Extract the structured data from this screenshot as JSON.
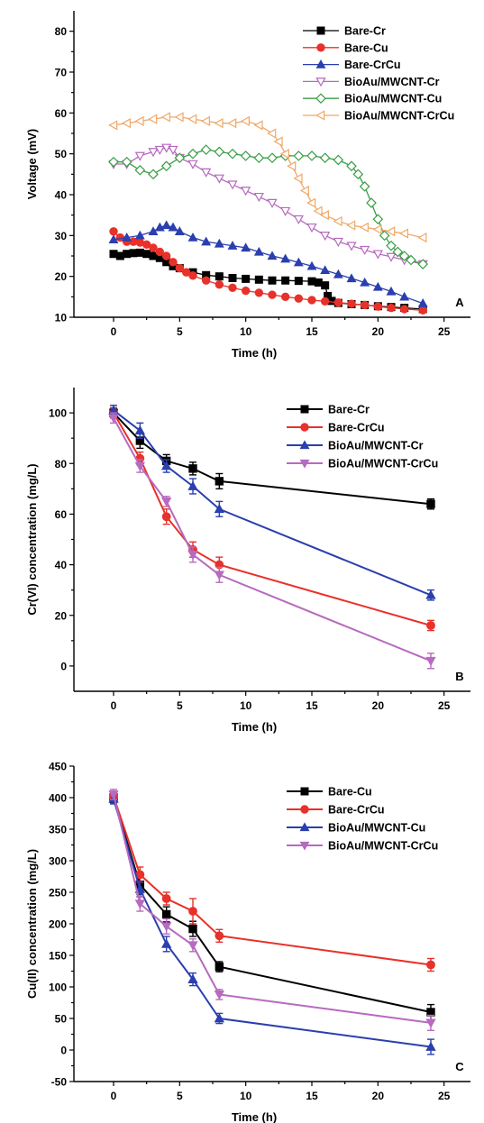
{
  "chart_data": [
    {
      "id": "A",
      "type": "line",
      "panel_label": "A",
      "xlabel": "Time (h)",
      "ylabel": "Voltage (mV)",
      "xlim": [
        -3,
        27
      ],
      "ylim": [
        10,
        85
      ],
      "xticks": [
        0,
        5,
        10,
        15,
        20,
        25
      ],
      "yticks": [
        10,
        20,
        30,
        40,
        50,
        60,
        70,
        80
      ],
      "grid": false,
      "legend_position": "top-right",
      "series": [
        {
          "name": "Bare-Cr",
          "color": "#000000",
          "marker": "square",
          "filled": true,
          "x": [
            0,
            0.5,
            1,
            1.5,
            2,
            2.5,
            3,
            3.5,
            4,
            4.5,
            5,
            6,
            7,
            8,
            9,
            10,
            11,
            12,
            13,
            14,
            15,
            15.5,
            16,
            16.2,
            16.5,
            17,
            18,
            19,
            20,
            21,
            22,
            23.4
          ],
          "y": [
            25.5,
            25,
            25.5,
            25.7,
            25.8,
            25.5,
            25,
            24.5,
            23.5,
            22.5,
            22,
            21,
            20.3,
            20,
            19.6,
            19.4,
            19.2,
            19,
            19,
            18.9,
            18.8,
            18.5,
            17.8,
            15.2,
            14,
            13.5,
            13.2,
            13,
            12.7,
            12.5,
            12.3,
            12
          ]
        },
        {
          "name": "Bare-Cu",
          "color": "#e8312a",
          "marker": "circle",
          "filled": true,
          "x": [
            0,
            0.5,
            1,
            1.5,
            2,
            2.5,
            3,
            3.5,
            4,
            4.5,
            5,
            5.5,
            6,
            7,
            8,
            9,
            10,
            11,
            12,
            13,
            14,
            15,
            16,
            17,
            18,
            19,
            20,
            21,
            22,
            23.4
          ],
          "y": [
            31,
            29.5,
            28.5,
            28.5,
            28.3,
            27.8,
            27,
            26,
            25,
            23.5,
            22,
            21,
            20.2,
            19,
            18,
            17.2,
            16.5,
            16,
            15.5,
            15,
            14.6,
            14.2,
            13.9,
            13.6,
            13.3,
            13,
            12.6,
            12.3,
            12,
            11.7
          ]
        },
        {
          "name": "Bare-CrCu",
          "color": "#2b3fae",
          "marker": "triangle-up",
          "filled": true,
          "x": [
            0,
            1,
            2,
            3,
            3.5,
            4,
            4.5,
            5,
            6,
            7,
            8,
            9,
            10,
            11,
            12,
            13,
            14,
            15,
            16,
            17,
            18,
            19,
            20,
            21,
            22,
            23.4
          ],
          "y": [
            29,
            29.5,
            30,
            31,
            32,
            32.5,
            32,
            31,
            29.5,
            28.5,
            28,
            27.5,
            27,
            26,
            25,
            24.3,
            23.4,
            22.5,
            21.5,
            20.5,
            19.5,
            18.5,
            17.4,
            16.3,
            15,
            13.4
          ]
        },
        {
          "name": "BioAu/MWCNT-Cr",
          "color": "#b76abf",
          "marker": "triangle-down",
          "filled": false,
          "x": [
            0,
            1,
            2,
            3,
            3.5,
            4,
            4.5,
            5,
            6,
            7,
            8,
            9,
            10,
            11,
            12,
            13,
            14,
            15,
            16,
            17,
            18,
            19,
            20,
            21,
            22,
            23.4
          ],
          "y": [
            47.5,
            47.5,
            49.5,
            50.5,
            51,
            51.5,
            51,
            49,
            47.5,
            45.5,
            44,
            42.5,
            41,
            39.5,
            38,
            36,
            34,
            32,
            30,
            28.5,
            27.5,
            26.5,
            25.5,
            24.8,
            24,
            23
          ]
        },
        {
          "name": "BioAu/MWCNT-Cu",
          "color": "#3a9e46",
          "marker": "diamond",
          "filled": false,
          "x": [
            0,
            1,
            2,
            3,
            4,
            5,
            6,
            7,
            8,
            9,
            10,
            11,
            12,
            13,
            14,
            15,
            16,
            17,
            18,
            18.5,
            19,
            19.5,
            20,
            20.5,
            21,
            21.5,
            22,
            22.5,
            23.4
          ],
          "y": [
            48,
            48,
            46,
            45,
            47,
            49,
            50,
            51,
            50.5,
            50,
            49.5,
            49,
            49,
            49.5,
            49.5,
            49.5,
            49,
            48.5,
            47,
            45,
            42,
            38,
            34,
            30,
            27.5,
            26,
            25,
            24,
            23
          ]
        },
        {
          "name": "BioAu/MWCNT-CrCu",
          "color": "#f0a868",
          "marker": "triangle-left",
          "filled": false,
          "x": [
            0,
            1,
            2,
            3,
            4,
            5,
            6,
            7,
            8,
            9,
            10,
            11,
            12,
            12.5,
            13,
            13.5,
            14,
            14.5,
            15,
            15.5,
            16,
            17,
            18,
            19,
            20,
            21,
            22,
            23.4
          ],
          "y": [
            57,
            57.5,
            58,
            58.5,
            59,
            59,
            58.5,
            58,
            57.5,
            57.5,
            58,
            57,
            55,
            53,
            50,
            47,
            44,
            41,
            38,
            36,
            35,
            33.5,
            32.5,
            32,
            31.5,
            31,
            30.5,
            29.5
          ]
        }
      ]
    },
    {
      "id": "B",
      "type": "line",
      "panel_label": "B",
      "xlabel": "Time (h)",
      "ylabel": "Cr(VI) concentration (mg/L)",
      "xlim": [
        -3,
        27
      ],
      "ylim": [
        -10,
        110
      ],
      "xticks": [
        0,
        5,
        10,
        15,
        20,
        25
      ],
      "yticks": [
        0,
        20,
        40,
        60,
        80,
        100
      ],
      "grid": false,
      "legend_position": "top-right",
      "series": [
        {
          "name": "Bare-Cr",
          "color": "#000000",
          "marker": "square",
          "filled": true,
          "x": [
            0,
            2,
            4,
            6,
            8,
            24
          ],
          "y": [
            100,
            89,
            81,
            78,
            73,
            64
          ],
          "err": [
            2,
            3,
            2.5,
            2.5,
            3,
            2
          ]
        },
        {
          "name": "Bare-CrCu",
          "color": "#e8312a",
          "marker": "circle",
          "filled": true,
          "x": [
            0,
            2,
            4,
            6,
            8,
            24
          ],
          "y": [
            100,
            82,
            59,
            46,
            40,
            16
          ],
          "err": [
            2,
            2.5,
            3,
            3,
            3,
            2
          ]
        },
        {
          "name": "BioAu/MWCNT-Cr",
          "color": "#2b3fae",
          "marker": "triangle-up",
          "filled": true,
          "x": [
            0,
            2,
            4,
            6,
            8,
            24
          ],
          "y": [
            101,
            93,
            79,
            71,
            62,
            28
          ],
          "err": [
            2,
            3,
            2.5,
            3,
            3,
            2
          ]
        },
        {
          "name": "BioAu/MWCNT-CrCu",
          "color": "#b76abf",
          "marker": "triangle-down",
          "filled": true,
          "x": [
            0,
            2,
            4,
            6,
            8,
            24
          ],
          "y": [
            98,
            79,
            65,
            44,
            36,
            2
          ],
          "err": [
            2,
            2.5,
            2,
            3,
            3,
            3
          ]
        }
      ]
    },
    {
      "id": "C",
      "type": "line",
      "panel_label": "C",
      "xlabel": "Time (h)",
      "ylabel": "Cu(II) concentration (mg/L)",
      "xlim": [
        -3,
        27
      ],
      "ylim": [
        -50,
        450
      ],
      "xticks": [
        0,
        5,
        10,
        15,
        20,
        25
      ],
      "yticks": [
        -50,
        0,
        50,
        100,
        150,
        200,
        250,
        300,
        350,
        400,
        450
      ],
      "grid": false,
      "legend_position": "top-right",
      "series": [
        {
          "name": "Bare-Cu",
          "color": "#000000",
          "marker": "square",
          "filled": true,
          "x": [
            0,
            2,
            4,
            6,
            8,
            24
          ],
          "y": [
            400,
            262,
            215,
            192,
            132,
            60
          ],
          "err": [
            8,
            15,
            12,
            12,
            8,
            12
          ]
        },
        {
          "name": "Bare-CrCu",
          "color": "#e8312a",
          "marker": "circle",
          "filled": true,
          "x": [
            0,
            2,
            4,
            6,
            8,
            24
          ],
          "y": [
            402,
            278,
            240,
            220,
            181,
            135
          ],
          "err": [
            8,
            12,
            10,
            20,
            10,
            10
          ]
        },
        {
          "name": "BioAu/MWCNT-Cu",
          "color": "#2b3fae",
          "marker": "triangle-up",
          "filled": true,
          "x": [
            0,
            2,
            4,
            6,
            8,
            24
          ],
          "y": [
            398,
            255,
            168,
            112,
            50,
            5
          ],
          "err": [
            8,
            12,
            12,
            10,
            8,
            12
          ]
        },
        {
          "name": "BioAu/MWCNT-CrCu",
          "color": "#b76abf",
          "marker": "triangle-down",
          "filled": true,
          "x": [
            0,
            2,
            4,
            6,
            8,
            24
          ],
          "y": [
            405,
            232,
            196,
            166,
            88,
            43
          ],
          "err": [
            8,
            12,
            12,
            10,
            8,
            12
          ]
        }
      ]
    }
  ]
}
